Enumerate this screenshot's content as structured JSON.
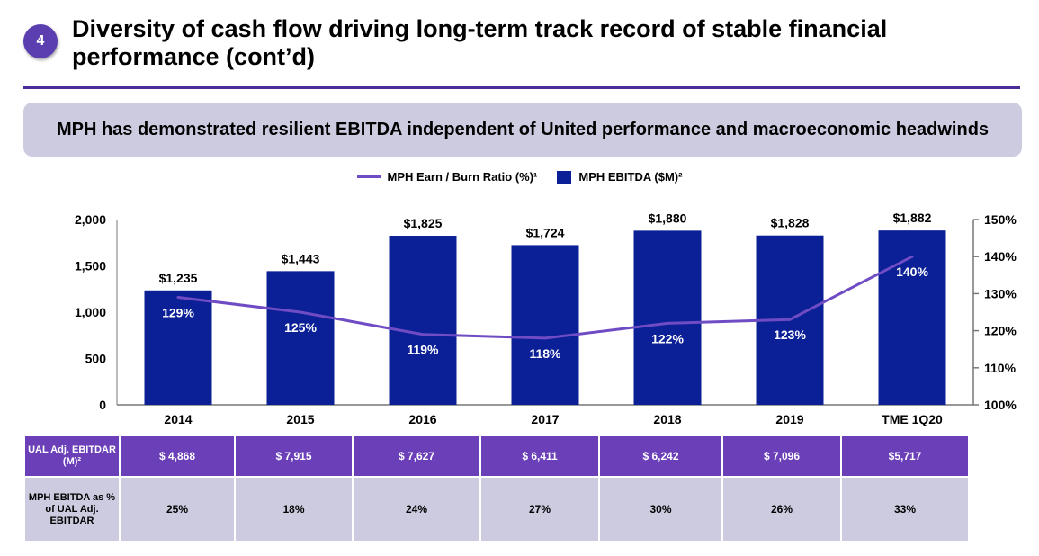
{
  "badge": "4",
  "title": "Diversity of cash flow driving long-term track record of stable financial performance (cont’d)",
  "callout": "MPH has demonstrated resilient EBITDA independent of United performance and macroeconomic headwinds",
  "legend": {
    "line_label": "MPH Earn / Burn Ratio (%)¹",
    "bar_label": "MPH EBITDA ($M)²"
  },
  "colors": {
    "bar": "#0b1f96",
    "line": "#6f4cc4",
    "accent": "#4b2d9a"
  },
  "chart_data": {
    "type": "bar",
    "categories": [
      "2014",
      "2015",
      "2016",
      "2017",
      "2018",
      "2019",
      "TME 1Q20"
    ],
    "series": [
      {
        "name": "MPH EBITDA ($M)²",
        "type": "bar",
        "axis": "left",
        "values": [
          1235,
          1443,
          1825,
          1724,
          1880,
          1828,
          1882
        ],
        "labels": [
          "$1,235",
          "$1,443",
          "$1,825",
          "$1,724",
          "$1,880",
          "$1,828",
          "$1,882"
        ]
      },
      {
        "name": "MPH Earn / Burn Ratio (%)¹",
        "type": "line",
        "axis": "right",
        "values": [
          129,
          125,
          119,
          118,
          122,
          123,
          140
        ],
        "labels": [
          "129%",
          "125%",
          "119%",
          "118%",
          "122%",
          "123%",
          "140%"
        ]
      }
    ],
    "ylim": [
      0,
      2000
    ],
    "yticks": [
      "2,000",
      "1,500",
      "1,000",
      "500",
      "0"
    ],
    "y2lim": [
      100,
      150
    ],
    "y2ticks": [
      "150%",
      "140%",
      "130%",
      "120%",
      "110%",
      "100%"
    ],
    "grid": false,
    "legend_position": "top"
  },
  "table": {
    "row1_header": "UAL Adj. EBITDAR (M)²",
    "row1": [
      "$ 4,868",
      "$ 7,915",
      "$ 7,627",
      "$ 6,411",
      "$  6,242",
      "$  7,096",
      "$5,717"
    ],
    "row2_header": "MPH EBITDA as % of UAL Adj. EBITDAR",
    "row2": [
      "25%",
      "18%",
      "24%",
      "27%",
      "30%",
      "26%",
      "33%"
    ]
  }
}
